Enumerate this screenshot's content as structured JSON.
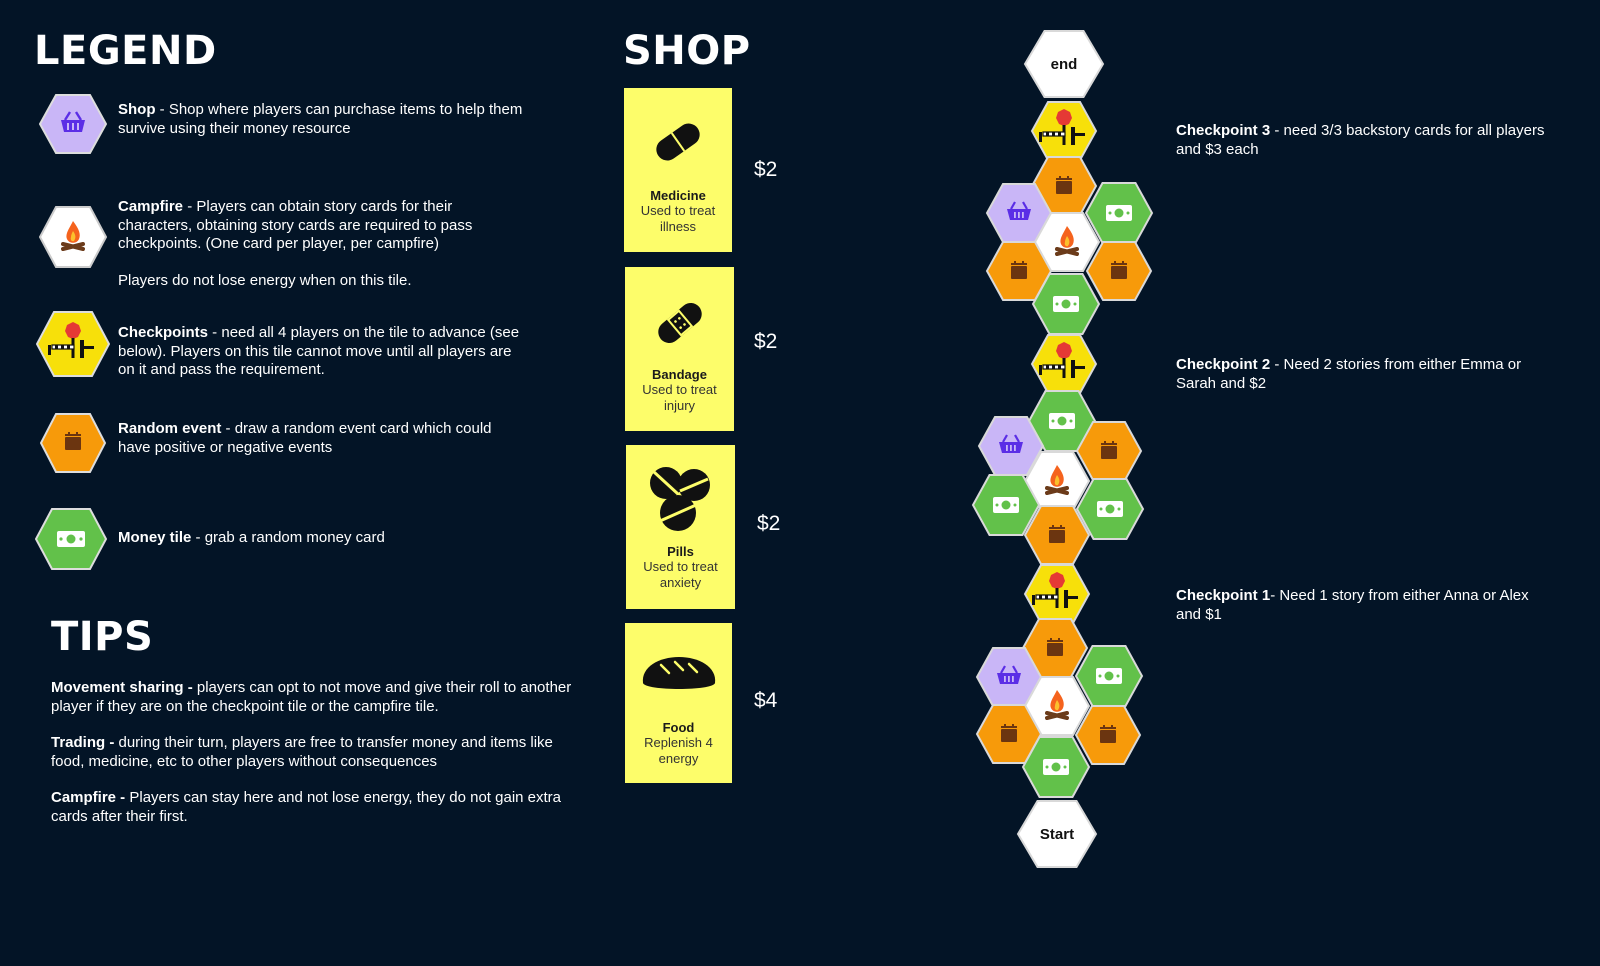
{
  "legend": {
    "heading": "LEGEND",
    "items": [
      {
        "icon": "shop-basket-icon",
        "title": "Shop",
        "text": " - Shop where players can purchase items to help them survive using their money resource",
        "note": ""
      },
      {
        "icon": "campfire-icon",
        "title": "Campfire",
        "text": " - Players can obtain story cards for their characters, obtaining story cards are required to pass checkpoints.  (One card per player, per campfire)",
        "note": "Players do not lose energy when on this tile."
      },
      {
        "icon": "checkpoint-barrier-icon",
        "title": "Checkpoints",
        "text": " - need all 4 players on the tile to advance (see below). Players on this tile cannot move until all players are on it and pass the requirement.",
        "note": ""
      },
      {
        "icon": "calendar-icon",
        "title": "Random event",
        "text": " - draw a random event card which could have positive or negative events",
        "note": ""
      },
      {
        "icon": "money-icon",
        "title": "Money tile",
        "text": " - grab a random money card",
        "note": ""
      }
    ]
  },
  "tips": {
    "heading": "TIPS",
    "items": [
      {
        "title": "Movement sharing - ",
        "text": "players can opt to not move and give their roll to another player if they are on the checkpoint tile or the campfire tile."
      },
      {
        "title": "Trading - ",
        "text": "during their turn, players are free to transfer money and items like food, medicine, etc to other players without consequences"
      },
      {
        "title": "Campfire - ",
        "text": "Players can stay here and not lose energy, they do not gain extra cards after their first."
      }
    ]
  },
  "shop": {
    "heading": "SHOP",
    "items": [
      {
        "icon": "pill-capsule-icon",
        "name": "Medicine",
        "desc": "Used to treat illness",
        "price": "$2"
      },
      {
        "icon": "bandage-icon",
        "name": "Bandage",
        "desc": "Used to treat injury",
        "price": "$2"
      },
      {
        "icon": "pills-icon",
        "name": "Pills",
        "desc": "Used to treat anxiety",
        "price": "$2"
      },
      {
        "icon": "bread-loaf-icon",
        "name": "Food",
        "desc": "Replenish 4 energy",
        "price": "$4"
      }
    ]
  },
  "board": {
    "end_label": "end",
    "start_label": "Start",
    "checkpoints": [
      {
        "title": "Checkpoint 3",
        "text": " - need 3/3 backstory cards for all players and $3 each"
      },
      {
        "title": "Checkpoint 2",
        "text": " - Need 2 stories from either Emma or Sarah and $2"
      },
      {
        "title": "Checkpoint 1",
        "text": "- Need 1 story from either Anna or Alex and $1"
      }
    ]
  },
  "colors": {
    "background": "#031426",
    "shop_tile": "#c9b6f7",
    "campfire_tile": "#ffffff",
    "checkpoint_tile": "#f7e00a",
    "event_tile": "#f79a0a",
    "money_tile": "#62c14a",
    "shop_card": "#fdfd6a"
  }
}
